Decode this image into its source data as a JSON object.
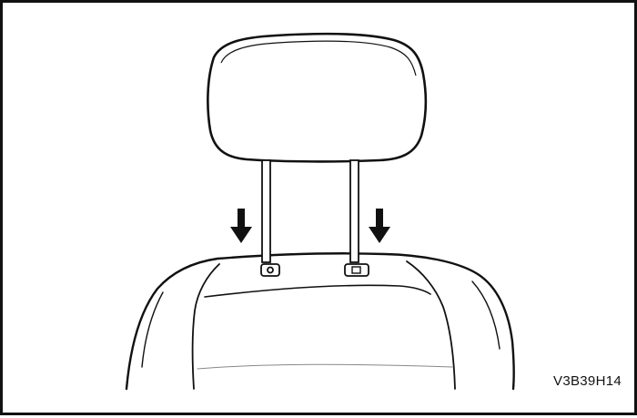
{
  "figure": {
    "reference_code": "V3B39H14",
    "line_color": "#111111",
    "background_color": "#ffffff",
    "parts": [
      "headrest",
      "headrest-post-left",
      "headrest-post-right",
      "seat-back",
      "post-guide-left",
      "post-guide-right",
      "down-arrow-left",
      "down-arrow-right"
    ]
  }
}
